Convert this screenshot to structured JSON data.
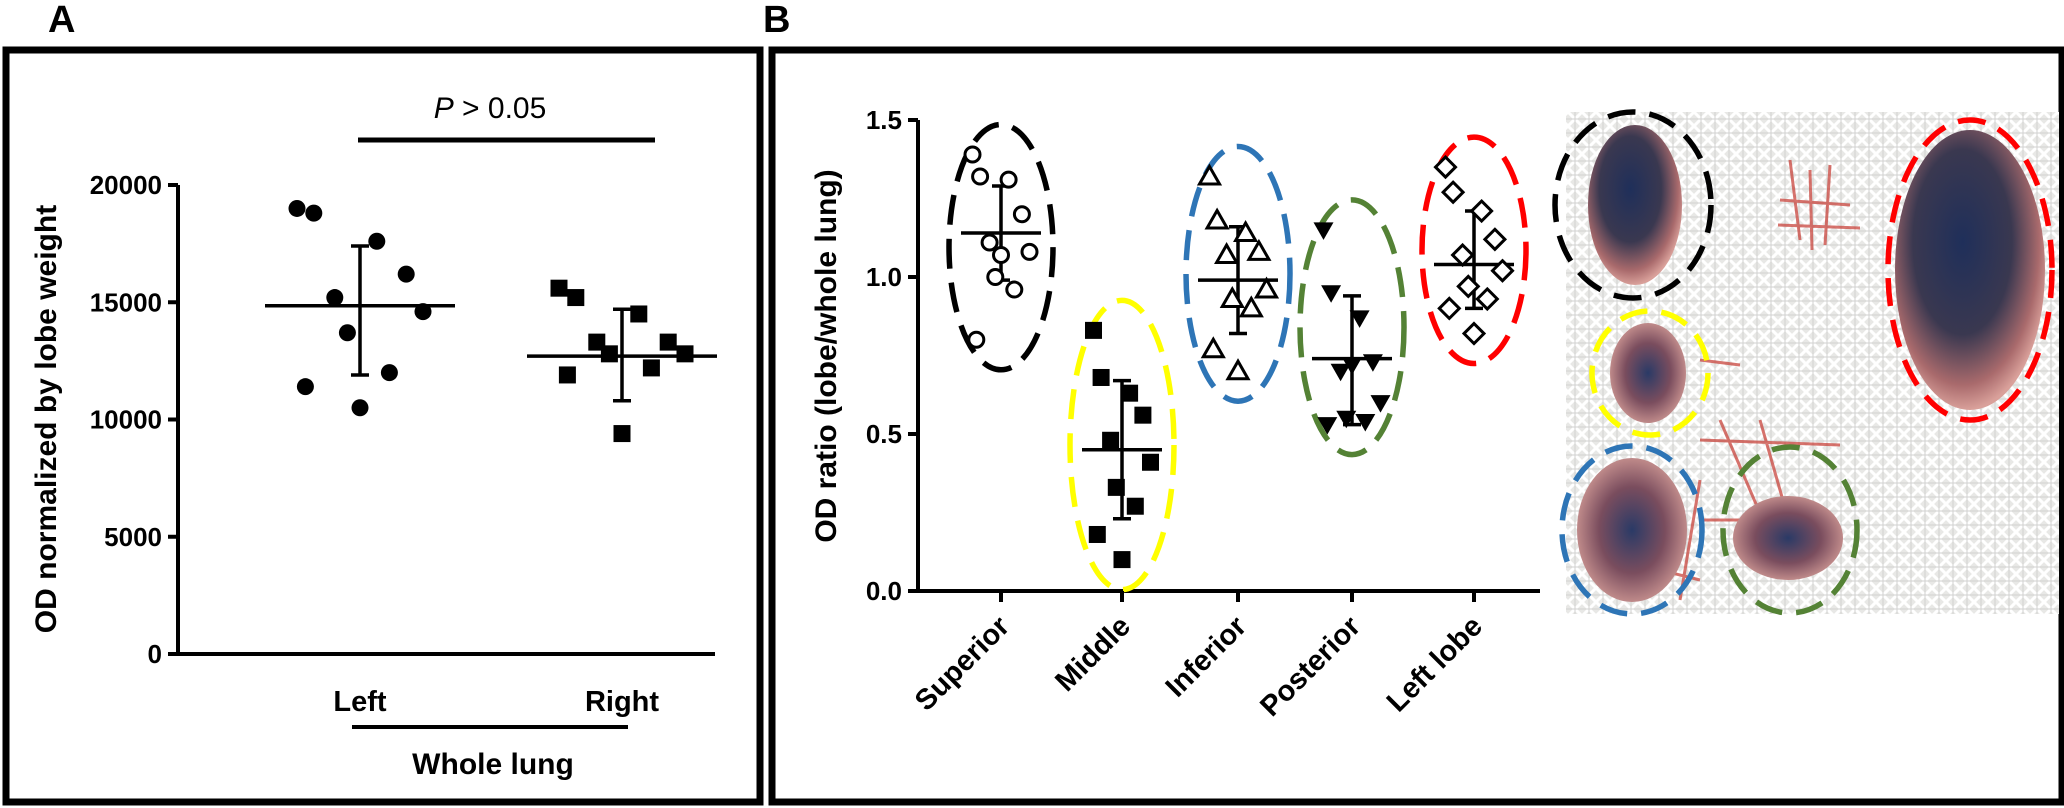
{
  "chart_data": [
    {
      "panel": "A",
      "type": "scatter",
      "ylabel": "OD normalized by lobe weight",
      "ylim": [
        0,
        20000
      ],
      "yticks": [
        "0",
        "5000",
        "10000",
        "15000",
        "20000"
      ],
      "ytick_values": [
        0,
        5000,
        10000,
        15000,
        20000
      ],
      "categories": [
        "Left",
        "Right"
      ],
      "group_label": "Whole lung",
      "annotation": {
        "prefix": "P",
        "suffix": " > 0.05"
      },
      "series": [
        {
          "name": "Left",
          "marker": "filled-circle",
          "values": [
            19000,
            18800,
            17600,
            16200,
            15200,
            14600,
            13700,
            12000,
            11400,
            10500
          ],
          "mean": 14850,
          "sd": [
            11900,
            17400
          ]
        },
        {
          "name": "Right",
          "marker": "filled-square",
          "values": [
            15600,
            15200,
            14500,
            13300,
            13300,
            12800,
            12800,
            12200,
            11900,
            9400
          ],
          "mean": 12700,
          "sd": [
            10800,
            14700
          ]
        }
      ]
    },
    {
      "panel": "B",
      "type": "scatter",
      "ylabel": "OD  ratio (lobe/whole lung)",
      "ylim": [
        0,
        1.5
      ],
      "yticks": [
        "0.0",
        "0.5",
        "1.0",
        "1.5"
      ],
      "ytick_values": [
        0,
        0.5,
        1.0,
        1.5
      ],
      "categories": [
        "Superior",
        "Middle",
        "Inferior",
        "Posterior",
        "Left lobe"
      ],
      "series": [
        {
          "name": "Superior",
          "marker": "open-circle",
          "ellipse_color": "#000000",
          "values": [
            1.39,
            1.32,
            1.31,
            1.2,
            1.11,
            1.08,
            1.0,
            0.96,
            0.8,
            1.07
          ],
          "mean": 1.14,
          "sd": [
            0.99,
            1.29
          ]
        },
        {
          "name": "Middle",
          "marker": "filled-square",
          "ellipse_color": "#ffff00",
          "values": [
            0.83,
            0.68,
            0.63,
            0.56,
            0.48,
            0.41,
            0.33,
            0.27,
            0.18,
            0.1
          ],
          "mean": 0.45,
          "sd": [
            0.23,
            0.67
          ]
        },
        {
          "name": "Inferior",
          "marker": "open-triangle-up",
          "ellipse_color": "#2e75b6",
          "values": [
            1.32,
            1.18,
            1.14,
            1.08,
            1.07,
            0.96,
            0.93,
            0.9,
            0.77,
            0.7
          ],
          "mean": 0.99,
          "sd": [
            0.82,
            1.16
          ]
        },
        {
          "name": "Posterior",
          "marker": "filled-triangle-down",
          "ellipse_color": "#548235",
          "values": [
            1.15,
            0.95,
            0.87,
            0.73,
            0.7,
            0.6,
            0.55,
            0.54,
            0.53,
            0.72
          ],
          "mean": 0.74,
          "sd": [
            0.53,
            0.94
          ]
        },
        {
          "name": "Left lobe",
          "marker": "open-diamond",
          "ellipse_color": "#ff0000",
          "values": [
            1.35,
            1.27,
            1.21,
            1.12,
            1.07,
            1.02,
            0.97,
            0.93,
            0.9,
            0.82
          ],
          "mean": 1.04,
          "sd": [
            0.9,
            1.21
          ]
        }
      ]
    }
  ],
  "photo": {
    "description_icon": "lung-lobes-photo",
    "ellipse_colors": [
      "#000000",
      "#ffff00",
      "#2e75b6",
      "#548235",
      "#ff0000"
    ]
  },
  "colors": {
    "stroke": "#000000",
    "background": "#ffffff"
  },
  "panels": {
    "a": "A",
    "b": "B"
  }
}
